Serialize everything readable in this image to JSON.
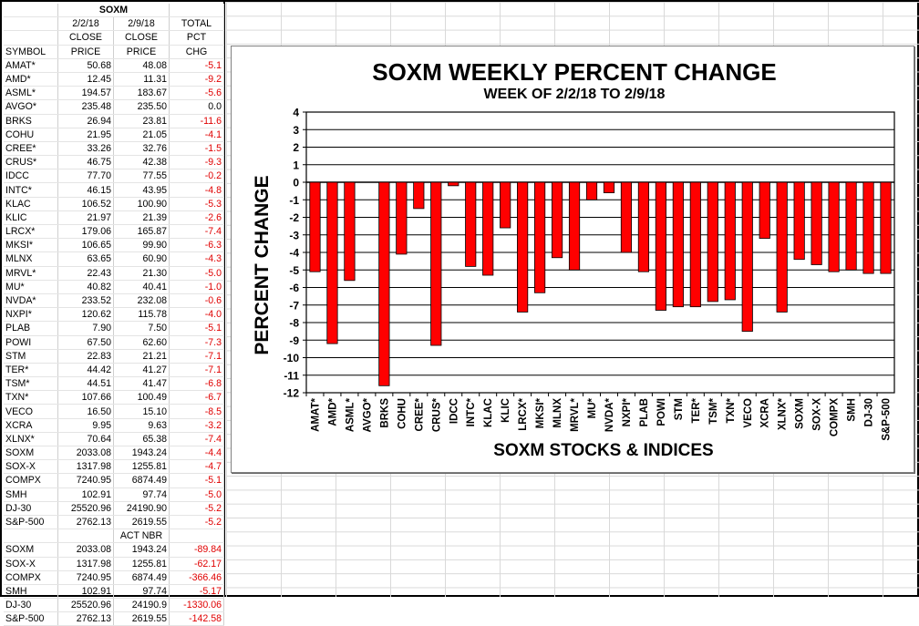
{
  "table": {
    "title": "SOXM",
    "headers": {
      "row1": [
        "",
        "2/2/18",
        "2/9/18",
        "TOTAL"
      ],
      "row2": [
        "",
        "CLOSE",
        "CLOSE",
        "PCT"
      ],
      "row3": [
        "SYMBOL",
        "PRICE",
        "PRICE",
        "CHG"
      ]
    },
    "rows": [
      [
        "AMAT*",
        "50.68",
        "48.08",
        "-5.1"
      ],
      [
        "AMD*",
        "12.45",
        "11.31",
        "-9.2"
      ],
      [
        "ASML*",
        "194.57",
        "183.67",
        "-5.6"
      ],
      [
        "AVGO*",
        "235.48",
        "235.50",
        "0.0"
      ],
      [
        "BRKS",
        "26.94",
        "23.81",
        "-11.6"
      ],
      [
        "COHU",
        "21.95",
        "21.05",
        "-4.1"
      ],
      [
        "CREE*",
        "33.26",
        "32.76",
        "-1.5"
      ],
      [
        "CRUS*",
        "46.75",
        "42.38",
        "-9.3"
      ],
      [
        "IDCC",
        "77.70",
        "77.55",
        "-0.2"
      ],
      [
        "INTC*",
        "46.15",
        "43.95",
        "-4.8"
      ],
      [
        "KLAC",
        "106.52",
        "100.90",
        "-5.3"
      ],
      [
        "KLIC",
        "21.97",
        "21.39",
        "-2.6"
      ],
      [
        "LRCX*",
        "179.06",
        "165.87",
        "-7.4"
      ],
      [
        "MKSI*",
        "106.65",
        "99.90",
        "-6.3"
      ],
      [
        "MLNX",
        "63.65",
        "60.90",
        "-4.3"
      ],
      [
        "MRVL*",
        "22.43",
        "21.30",
        "-5.0"
      ],
      [
        "MU*",
        "40.82",
        "40.41",
        "-1.0"
      ],
      [
        "NVDA*",
        "233.52",
        "232.08",
        "-0.6"
      ],
      [
        "NXPI*",
        "120.62",
        "115.78",
        "-4.0"
      ],
      [
        "PLAB",
        "7.90",
        "7.50",
        "-5.1"
      ],
      [
        "POWI",
        "67.50",
        "62.60",
        "-7.3"
      ],
      [
        "STM",
        "22.83",
        "21.21",
        "-7.1"
      ],
      [
        "TER*",
        "44.42",
        "41.27",
        "-7.1"
      ],
      [
        "TSM*",
        "44.51",
        "41.47",
        "-6.8"
      ],
      [
        "TXN*",
        "107.66",
        "100.49",
        "-6.7"
      ],
      [
        "VECO",
        "16.50",
        "15.10",
        "-8.5"
      ],
      [
        "XCRA",
        "9.95",
        "9.63",
        "-3.2"
      ],
      [
        "XLNX*",
        "70.64",
        "65.38",
        "-7.4"
      ]
    ],
    "index_rows": [
      [
        "SOXM",
        "2033.08",
        "1943.24",
        "-4.4"
      ],
      [
        "SOX-X",
        "1317.98",
        "1255.81",
        "-4.7"
      ],
      [
        "COMPX",
        "7240.95",
        "6874.49",
        "-5.1"
      ],
      [
        "SMH",
        "102.91",
        "97.74",
        "-5.0"
      ],
      [
        "DJ-30",
        "25520.96",
        "24190.90",
        "-5.2"
      ],
      [
        "S&P-500",
        "2762.13",
        "2619.55",
        "-5.2"
      ]
    ],
    "act_header": "ACT NBR",
    "act_rows": [
      [
        "SOXM",
        "2033.08",
        "1943.24",
        "-89.84"
      ],
      [
        "SOX-X",
        "1317.98",
        "1255.81",
        "-62.17"
      ],
      [
        "COMPX",
        "7240.95",
        "6874.49",
        "-366.46"
      ],
      [
        "SMH",
        "102.91",
        "97.74",
        "-5.17"
      ],
      [
        "DJ-30",
        "25520.96",
        "24190.9",
        "-1330.06"
      ],
      [
        "S&P-500",
        "2762.13",
        "2619.55",
        "-142.58"
      ]
    ]
  },
  "colors": {
    "bar": "#ff0000",
    "negative_text": "#e00000"
  },
  "chart_data": {
    "type": "bar",
    "title": "SOXM WEEKLY PERCENT CHANGE",
    "subtitle": "WEEK OF 2/2/18 TO 2/9/18",
    "xlabel": "SOXM STOCKS & INDICES",
    "ylabel": "PERCENT CHANGE",
    "ylim": [
      -12,
      4
    ],
    "yticks": [
      4,
      3,
      2,
      1,
      0,
      -1,
      -2,
      -3,
      -4,
      -5,
      -6,
      -7,
      -8,
      -9,
      -10,
      -11,
      -12
    ],
    "grid": true,
    "categories": [
      "AMAT*",
      "AMD*",
      "ASML*",
      "AVGO*",
      "BRKS",
      "COHU",
      "CREE*",
      "CRUS*",
      "IDCC",
      "INTC*",
      "KLAC",
      "KLIC",
      "LRCX*",
      "MKSI*",
      "MLNX",
      "MRVL*",
      "MU*",
      "NVDA*",
      "NXPI*",
      "PLAB",
      "POWI",
      "STM",
      "TER*",
      "TSM*",
      "TXN*",
      "VECO",
      "XCRA",
      "XLNX*",
      "SOXM",
      "SOX-X",
      "COMPX",
      "SMH",
      "DJ-30",
      "S&P-500"
    ],
    "values": [
      -5.1,
      -9.2,
      -5.6,
      0.0,
      -11.6,
      -4.1,
      -1.5,
      -9.3,
      -0.2,
      -4.8,
      -5.3,
      -2.6,
      -7.4,
      -6.3,
      -4.3,
      -5.0,
      -1.0,
      -0.6,
      -4.0,
      -5.1,
      -7.3,
      -7.1,
      -7.1,
      -6.8,
      -6.7,
      -8.5,
      -3.2,
      -7.4,
      -4.4,
      -4.7,
      -5.1,
      -5.0,
      -5.2,
      -5.2
    ]
  }
}
